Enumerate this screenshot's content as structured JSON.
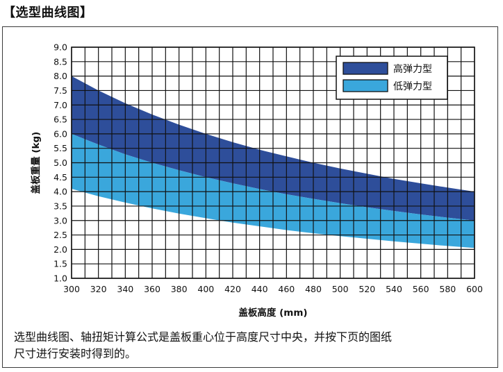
{
  "header": {
    "title": "【选型曲线图】"
  },
  "note": {
    "line1": "选型曲线图、轴扭矩计算公式是盖板重心位于高度尺寸中央，并按下页的图纸",
    "line2": "尺寸进行安装时得到的。"
  },
  "colors": {
    "high": "#2e4e9a",
    "low": "#3aa7dc",
    "grid": "#111111"
  },
  "chart_data": {
    "type": "area",
    "xlabel": "盖板高度 (mm)",
    "ylabel": "盖板重量 (kg)",
    "xlim": [
      300,
      600
    ],
    "ylim": [
      1.0,
      9.0
    ],
    "x_ticks": [
      "300",
      "320",
      "340",
      "360",
      "380",
      "400",
      "420",
      "440",
      "460",
      "480",
      "500",
      "520",
      "540",
      "560",
      "580",
      "600"
    ],
    "y_ticks": [
      "1.0",
      "1.5",
      "2.0",
      "2.5",
      "3.0",
      "3.5",
      "4.0",
      "4.5",
      "5.0",
      "5.5",
      "6.0",
      "6.5",
      "7.0",
      "7.5",
      "8.0",
      "8.5",
      "9.0"
    ],
    "x": [
      300,
      320,
      340,
      360,
      380,
      400,
      420,
      440,
      460,
      480,
      500,
      520,
      540,
      560,
      580,
      600
    ],
    "grid": true,
    "legend_position": "top-right",
    "series": [
      {
        "name": "高弹力型",
        "color": "#2e4e9a",
        "upper": [
          8.0,
          7.5,
          7.06,
          6.67,
          6.32,
          6.0,
          5.71,
          5.45,
          5.22,
          5.0,
          4.8,
          4.62,
          4.44,
          4.29,
          4.14,
          4.0
        ],
        "lower": [
          6.0,
          5.63,
          5.29,
          5.0,
          4.74,
          4.5,
          4.29,
          4.09,
          3.91,
          3.75,
          3.6,
          3.46,
          3.33,
          3.21,
          3.1,
          3.0
        ]
      },
      {
        "name": "低弹力型",
        "color": "#3aa7dc",
        "upper": [
          6.0,
          5.63,
          5.29,
          5.0,
          4.74,
          4.5,
          4.29,
          4.09,
          3.91,
          3.75,
          3.6,
          3.46,
          3.33,
          3.21,
          3.1,
          3.0
        ],
        "lower": [
          4.1,
          3.84,
          3.62,
          3.42,
          3.24,
          3.08,
          2.93,
          2.8,
          2.67,
          2.56,
          2.46,
          2.37,
          2.28,
          2.2,
          2.12,
          2.05
        ]
      }
    ]
  }
}
